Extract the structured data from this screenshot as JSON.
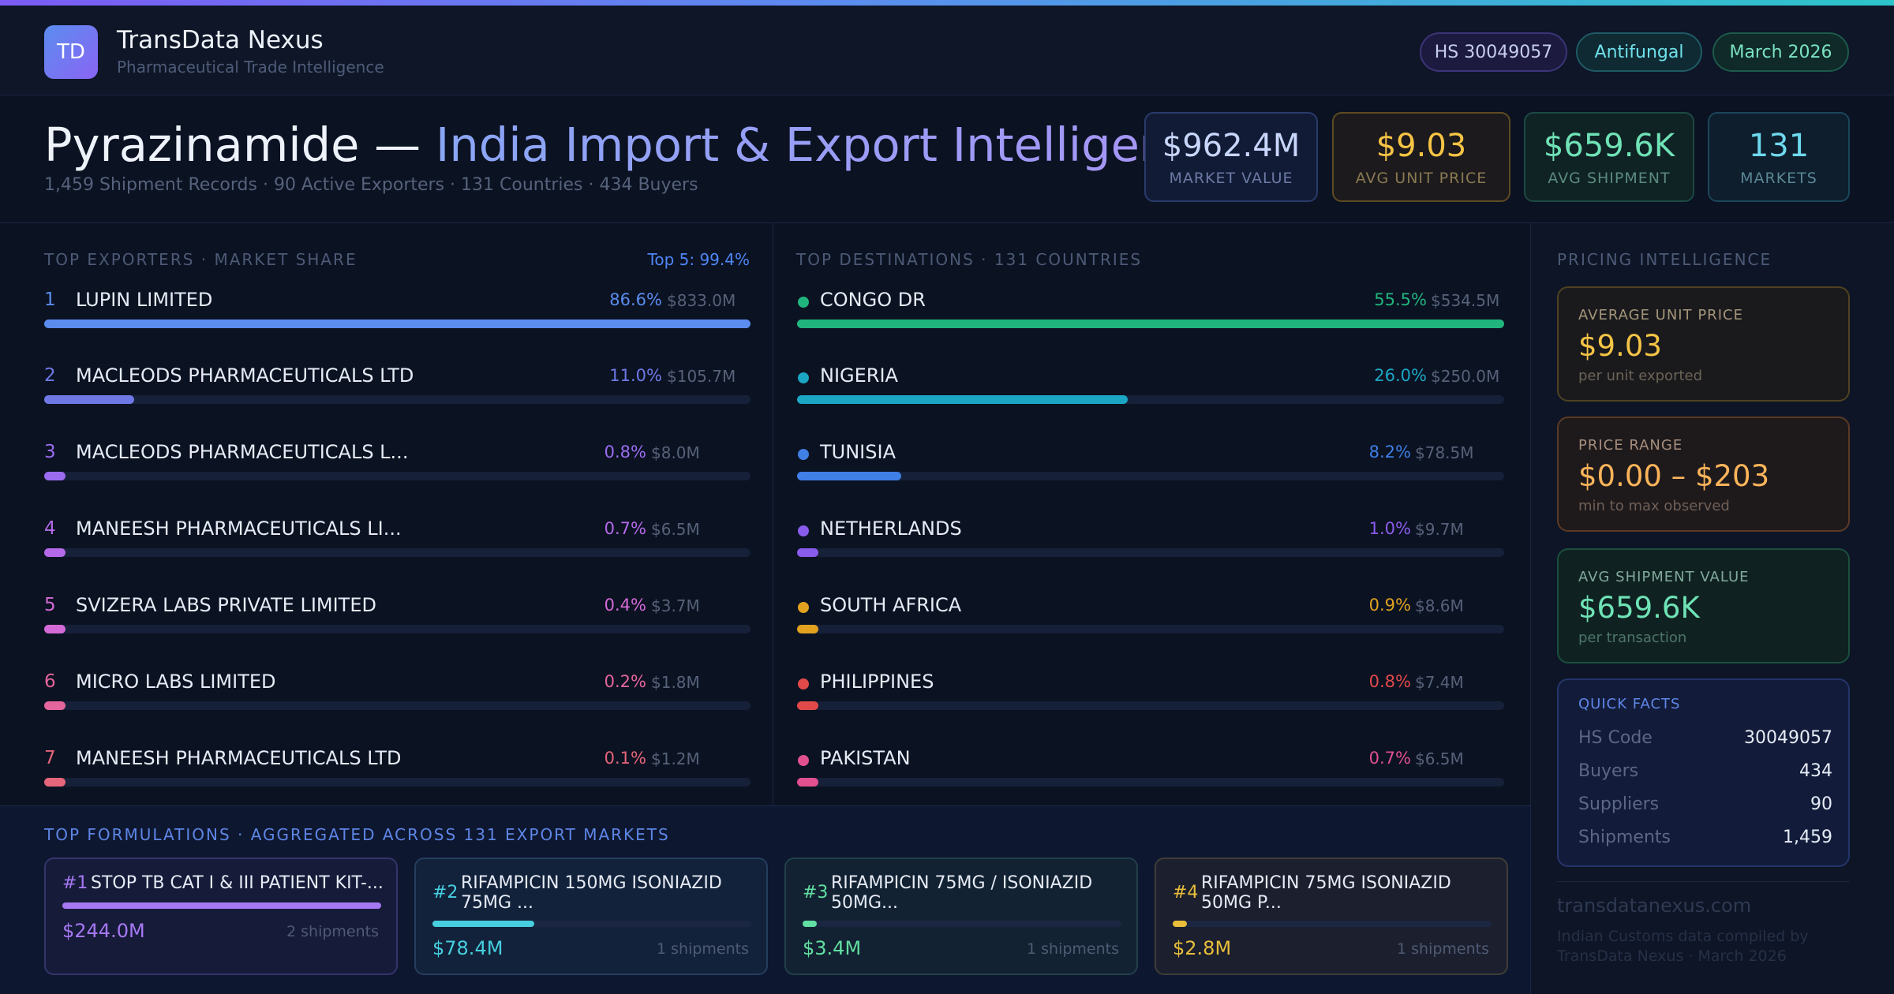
{
  "brand": {
    "initials": "TD",
    "name": "TransData Nexus",
    "tagline": "Pharmaceutical Trade Intelligence"
  },
  "header_pills": {
    "hs": "HS 30049057",
    "category": "Antifungal",
    "date": "March 2026"
  },
  "hero": {
    "title_product": "Pyrazinamide —",
    "title_rest": "India Import & Export Intelligence",
    "subtitle": "1,459 Shipment Records · 90 Active Exporters · 131 Countries · 434 Buyers"
  },
  "kpis": [
    {
      "value": "$962.4M",
      "label": "MARKET VALUE"
    },
    {
      "value": "$9.03",
      "label": "AVG UNIT PRICE"
    },
    {
      "value": "$659.6K",
      "label": "AVG SHIPMENT"
    },
    {
      "value": "131",
      "label": "MARKETS"
    }
  ],
  "exporters": {
    "title": "TOP EXPORTERS · MARKET SHARE",
    "top_note": "Top 5: 99.4%",
    "items": [
      {
        "rank": "1",
        "name": "LUPIN LIMITED",
        "pct": "86.6%",
        "amount": "$833.0M",
        "share": 1.0,
        "color": "#5b8def"
      },
      {
        "rank": "2",
        "name": "MACLEODS PHARMACEUTICALS LTD",
        "pct": "11.0%",
        "amount": "$105.7M",
        "share": 0.127,
        "color": "#6f79e6"
      },
      {
        "rank": "3",
        "name": "MACLEODS PHARMACEUTICALS L...",
        "pct": "0.8%",
        "amount": "$8.0M",
        "share": 0.03,
        "color": "#9b6cf0"
      },
      {
        "rank": "4",
        "name": "MANEESH PHARMACEUTICALS LI...",
        "pct": "0.7%",
        "amount": "$6.5M",
        "share": 0.03,
        "color": "#b46ae8"
      },
      {
        "rank": "5",
        "name": "SVIZERA LABS PRIVATE LIMITED",
        "pct": "0.4%",
        "amount": "$3.7M",
        "share": 0.03,
        "color": "#d46ad6"
      },
      {
        "rank": "6",
        "name": "MICRO LABS LIMITED",
        "pct": "0.2%",
        "amount": "$1.8M",
        "share": 0.03,
        "color": "#e4669d"
      },
      {
        "rank": "7",
        "name": "MANEESH PHARMACEUTICALS LTD",
        "pct": "0.1%",
        "amount": "$1.2M",
        "share": 0.03,
        "color": "#e5657a"
      }
    ]
  },
  "destinations": {
    "title": "TOP DESTINATIONS · 131 COUNTRIES",
    "items": [
      {
        "name": "CONGO DR",
        "pct": "55.5%",
        "amount": "$534.5M",
        "share": 1.0,
        "color": "#21b57e"
      },
      {
        "name": "NIGERIA",
        "pct": "26.0%",
        "amount": "$250.0M",
        "share": 0.468,
        "color": "#1ba6c4"
      },
      {
        "name": "TUNISIA",
        "pct": "8.2%",
        "amount": "$78.5M",
        "share": 0.147,
        "color": "#3f7fe6"
      },
      {
        "name": "NETHERLANDS",
        "pct": "1.0%",
        "amount": "$9.7M",
        "share": 0.03,
        "color": "#8a5cec"
      },
      {
        "name": "SOUTH AFRICA",
        "pct": "0.9%",
        "amount": "$8.6M",
        "share": 0.03,
        "color": "#e2a21f"
      },
      {
        "name": "PHILIPPINES",
        "pct": "0.8%",
        "amount": "$7.4M",
        "share": 0.03,
        "color": "#e24a4a"
      },
      {
        "name": "PAKISTAN",
        "pct": "0.7%",
        "amount": "$6.5M",
        "share": 0.03,
        "color": "#e1508f"
      }
    ]
  },
  "formulations": {
    "title": "TOP FORMULATIONS · AGGREGATED ACROSS 131 EXPORT MARKETS",
    "items": [
      {
        "rank": "#1",
        "name": "STOP TB CAT I & III PATIENT KIT-...",
        "value": "$244.0M",
        "shipments": "2 shipments",
        "share": 1.0,
        "color": "#a678f3",
        "bg": "#161b3a",
        "border": "#33356a"
      },
      {
        "rank": "#2",
        "name": "RIFAMPICIN 150MG ISONIAZID 75MG ...",
        "value": "$78.4M",
        "shipments": "1 shipments",
        "share": 0.32,
        "color": "#46cfe0",
        "bg": "#12223a",
        "border": "#243e5e"
      },
      {
        "rank": "#3",
        "name": "RIFAMPICIN 75MG / ISONIAZID 50MG...",
        "value": "$3.4M",
        "shipments": "1 shipments",
        "share": 0.04,
        "color": "#62dfa2",
        "bg": "#122232",
        "border": "#21404a"
      },
      {
        "rank": "#4",
        "name": "RIFAMPICIN 75MG ISONIAZID 50MG P...",
        "value": "$2.8M",
        "shipments": "1 shipments",
        "share": 0.04,
        "color": "#e8be3b",
        "bg": "#1b1f2e",
        "border": "#3f3d36"
      }
    ]
  },
  "pricing": {
    "title": "PRICING INTELLIGENCE",
    "avg_unit": {
      "label": "AVERAGE UNIT PRICE",
      "value": "$9.03",
      "sub": "per unit exported"
    },
    "range": {
      "label": "PRICE RANGE",
      "value": "$0.00 – $203",
      "sub": "min to max observed"
    },
    "avg_shipment": {
      "label": "AVG SHIPMENT VALUE",
      "value": "$659.6K",
      "sub": "per transaction"
    }
  },
  "quick_facts": {
    "title": "QUICK FACTS",
    "rows": [
      {
        "key": "HS Code",
        "value": "30049057"
      },
      {
        "key": "Buyers",
        "value": "434"
      },
      {
        "key": "Suppliers",
        "value": "90"
      },
      {
        "key": "Shipments",
        "value": "1,459"
      }
    ]
  },
  "footer": {
    "site": "transdatanexus.com",
    "note": "Indian Customs data compiled by TransData Nexus · March 2026"
  }
}
